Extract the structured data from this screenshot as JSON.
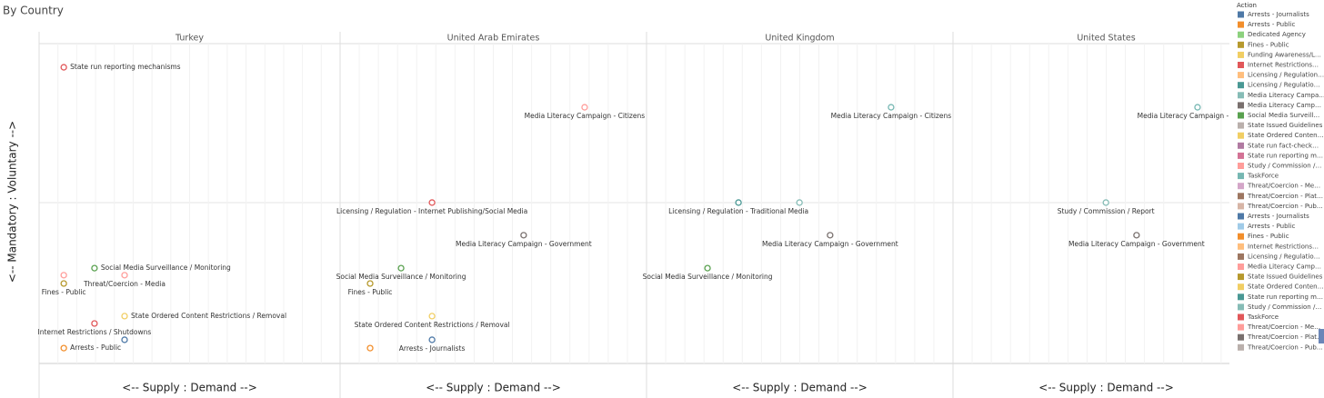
{
  "title": "By Country",
  "y_label": "<-- Mandatory : Voluntary -->",
  "legend": {
    "title": "Action",
    "items": [
      {
        "name": "Arrests - Journalists",
        "color": "#4e79a7"
      },
      {
        "name": "Arrests - Public",
        "color": "#f28e2b"
      },
      {
        "name": "Dedicated Agency",
        "color": "#8cd17d"
      },
      {
        "name": "Fines - Public",
        "color": "#b6992d"
      },
      {
        "name": "Funding Awareness/L…",
        "color": "#f1ce63"
      },
      {
        "name": "Internet Restrictions…",
        "color": "#e15759"
      },
      {
        "name": "Licensing / Regulation…",
        "color": "#ffbe7d"
      },
      {
        "name": "Licensing / Regulatio…",
        "color": "#499894"
      },
      {
        "name": "Media Literacy Campa…",
        "color": "#86bcb6"
      },
      {
        "name": "Media Literacy Camp…",
        "color": "#79706e"
      },
      {
        "name": "Social Media Surveill…",
        "color": "#59a14f"
      },
      {
        "name": "State Issued Guidelines",
        "color": "#bab0ac"
      },
      {
        "name": "State Ordered Conten…",
        "color": "#f1ce63"
      },
      {
        "name": "State run fact-check…",
        "color": "#b07aa1"
      },
      {
        "name": "State run reporting m…",
        "color": "#d37295"
      },
      {
        "name": "Study / Commission /…",
        "color": "#ff9d9a"
      },
      {
        "name": "TaskForce",
        "color": "#76b7b2"
      },
      {
        "name": "Threat/Coercion - Me…",
        "color": "#d4a6c8"
      },
      {
        "name": "Threat/Coercion - Plat…",
        "color": "#9d7660"
      },
      {
        "name": "Threat/Coercion - Pub…",
        "color": "#d7b5a6"
      },
      {
        "name": "Arrests - Journalists",
        "color": "#4e79a7"
      },
      {
        "name": "Arrests - Public",
        "color": "#a0cbe8"
      },
      {
        "name": "Fines - Public",
        "color": "#f28e2b"
      },
      {
        "name": "Internet Restrictions…",
        "color": "#ffbe7d"
      },
      {
        "name": "Licensing / Regulatio…",
        "color": "#9d7660"
      },
      {
        "name": "Media Literacy Camp…",
        "color": "#ff9d9a"
      },
      {
        "name": "State Issued Guidelines",
        "color": "#b6992d"
      },
      {
        "name": "State Ordered Conten…",
        "color": "#f1ce63"
      },
      {
        "name": "State run reporting m…",
        "color": "#499894"
      },
      {
        "name": "Study / Commission /…",
        "color": "#86bcb6"
      },
      {
        "name": "TaskForce",
        "color": "#e15759"
      },
      {
        "name": "Threat/Coercion - Me…",
        "color": "#ff9d9a"
      },
      {
        "name": "Threat/Coercion - Plat…",
        "color": "#79706e"
      },
      {
        "name": "Threat/Coercion - Pub…",
        "color": "#bab0ac"
      }
    ]
  },
  "chart_data": [
    {
      "type": "scatter",
      "title": "Turkey",
      "x_label": "<-- Supply : Demand -->",
      "xlim": [
        0,
        100
      ],
      "ylim": [
        0,
        100
      ],
      "points": [
        {
          "label": "State run reporting mechanisms",
          "x": 8.2,
          "y": 92.6,
          "color": "#e15759"
        },
        {
          "label": "Social Media Surveillance / Monitoring",
          "x": 18.4,
          "y": 29.8,
          "color": "#59a14f"
        },
        {
          "label": null,
          "x": 8.2,
          "y": 27.6,
          "color": "#ff9d9a"
        },
        {
          "label": "Threat/Coercion - Media",
          "x": 28.4,
          "y": 27.6,
          "color": "#ff9d9a"
        },
        {
          "label": "Fines - Public",
          "x": 8.2,
          "y": 25.0,
          "color": "#b6992d"
        },
        {
          "label": "State Ordered Content Restrictions / Removal",
          "x": 28.4,
          "y": 14.8,
          "color": "#f1ce63"
        },
        {
          "label": "Internet Restrictions / Shutdowns",
          "x": 18.4,
          "y": 12.5,
          "color": "#e15759"
        },
        {
          "label": null,
          "x": 28.4,
          "y": 7.4,
          "color": "#4e79a7"
        },
        {
          "label": "Arrests - Public",
          "x": 8.2,
          "y": 4.8,
          "color": "#f28e2b"
        }
      ]
    },
    {
      "type": "scatter",
      "title": "United Arab Emirates",
      "x_label": "<-- Supply : Demand -->",
      "xlim": [
        0,
        100
      ],
      "ylim": [
        0,
        100
      ],
      "points": [
        {
          "label": "Media Literacy Campaign - Citizens",
          "x": 79.8,
          "y": 80.1,
          "color": "#ff9d9a"
        },
        {
          "label": "Licensing / Regulation - Internet Publishing/Social Media",
          "x": 30.0,
          "y": 50.3,
          "color": "#e15759"
        },
        {
          "label": "Media Literacy Campaign - Government",
          "x": 59.9,
          "y": 40.1,
          "color": "#79706e"
        },
        {
          "label": "Social Media Surveillance / Monitoring",
          "x": 19.9,
          "y": 29.8,
          "color": "#59a14f"
        },
        {
          "label": "Fines - Public",
          "x": 9.8,
          "y": 25.0,
          "color": "#b6992d"
        },
        {
          "label": "State Ordered Content Restrictions / Removal",
          "x": 30.0,
          "y": 14.8,
          "color": "#f1ce63"
        },
        {
          "label": "Arrests - Journalists",
          "x": 30.0,
          "y": 7.4,
          "color": "#4e79a7"
        },
        {
          "label": null,
          "x": 9.8,
          "y": 4.8,
          "color": "#f28e2b"
        }
      ]
    },
    {
      "type": "scatter",
      "title": "United Kingdom",
      "x_label": "<-- Supply : Demand -->",
      "xlim": [
        0,
        100
      ],
      "ylim": [
        0,
        100
      ],
      "points": [
        {
          "label": "Media Literacy Campaign - Citizens",
          "x": 79.8,
          "y": 80.1,
          "color": "#76b7b2"
        },
        {
          "label": "Licensing / Regulation - Traditional Media",
          "x": 30.0,
          "y": 50.3,
          "color": "#499894"
        },
        {
          "label": null,
          "x": 49.9,
          "y": 50.3,
          "color": "#86bcb6"
        },
        {
          "label": "Media Literacy Campaign - Government",
          "x": 59.9,
          "y": 40.1,
          "color": "#79706e"
        },
        {
          "label": "Social Media Surveillance / Monitoring",
          "x": 19.9,
          "y": 29.8,
          "color": "#59a14f"
        }
      ]
    },
    {
      "type": "scatter",
      "title": "United States",
      "x_label": "<-- Supply : Demand -->",
      "xlim": [
        0,
        100
      ],
      "ylim": [
        0,
        100
      ],
      "points": [
        {
          "label": "Media Literacy Campaign - Citizens",
          "x": 79.8,
          "y": 80.1,
          "color": "#76b7b2"
        },
        {
          "label": "Study / Commission / Report",
          "x": 49.9,
          "y": 50.3,
          "color": "#86bcb6"
        },
        {
          "label": "Media Literacy Campaign - Government",
          "x": 59.9,
          "y": 40.1,
          "color": "#79706e"
        }
      ]
    }
  ]
}
